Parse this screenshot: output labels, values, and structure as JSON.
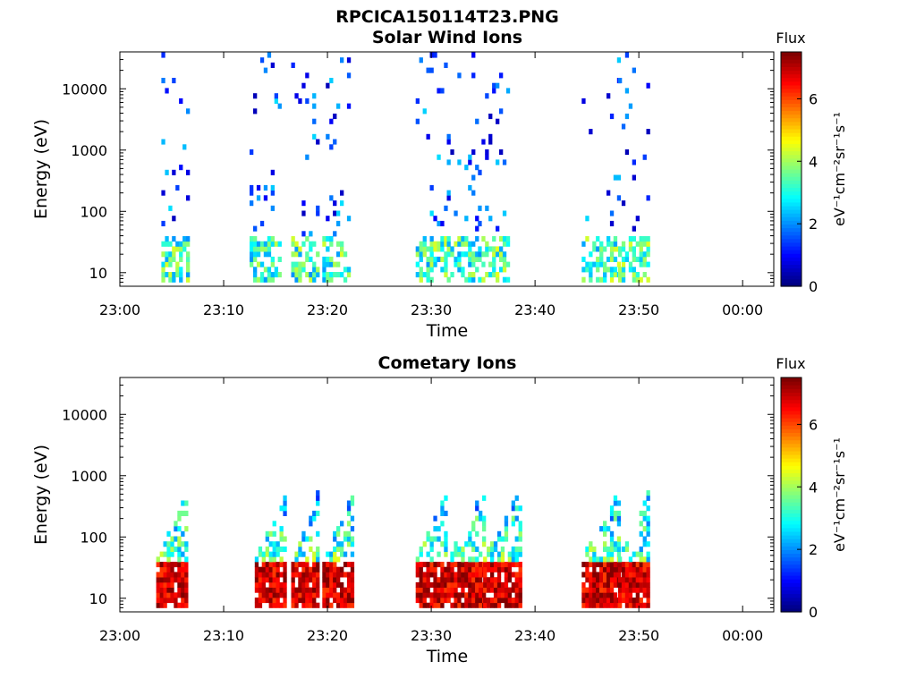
{
  "figure": {
    "title": "RPCICA150114T23.PNG"
  },
  "chart_data": [
    {
      "type": "heatmap",
      "title": "Solar Wind Ions",
      "xlabel": "Time",
      "ylabel": "Energy (eV)",
      "x_ticks": [
        "23:00",
        "23:10",
        "23:20",
        "23:30",
        "23:40",
        "23:50",
        "00:00"
      ],
      "xlim_minutes": [
        0,
        63
      ],
      "y_scale": "log",
      "ylim": [
        6,
        40000
      ],
      "y_ticks": [
        10,
        100,
        1000,
        10000
      ],
      "y_tick_labels": [
        "10",
        "100",
        "1000",
        "10000"
      ],
      "colorbar": {
        "label": "Flux",
        "units": "eV⁻¹cm⁻²sr⁻¹s⁻¹",
        "range": [
          0,
          7.5
        ],
        "ticks": [
          "0",
          "2",
          "4",
          "6"
        ],
        "colormap": "jet"
      },
      "bursts": [
        {
          "t_start": 4.0,
          "t_end": 6.5
        },
        {
          "t_start": 12.5,
          "t_end": 15.5
        },
        {
          "t_start": 16.5,
          "t_end": 19.0
        },
        {
          "t_start": 19.5,
          "t_end": 22.0
        },
        {
          "t_start": 28.5,
          "t_end": 31.5
        },
        {
          "t_start": 31.5,
          "t_end": 34.5
        },
        {
          "t_start": 34.5,
          "t_end": 37.5
        },
        {
          "t_start": 44.5,
          "t_end": 48.0
        },
        {
          "t_start": 48.0,
          "t_end": 51.0
        }
      ],
      "energy_range_eV": [
        7,
        35000
      ],
      "peak_flux": 4.5
    },
    {
      "type": "heatmap",
      "title": "Cometary Ions",
      "xlabel": "Time",
      "ylabel": "Energy (eV)",
      "x_ticks": [
        "23:00",
        "23:10",
        "23:20",
        "23:30",
        "23:40",
        "23:50",
        "00:00"
      ],
      "xlim_minutes": [
        0,
        63
      ],
      "y_scale": "log",
      "ylim": [
        6,
        40000
      ],
      "y_ticks": [
        10,
        100,
        1000,
        10000
      ],
      "y_tick_labels": [
        "10",
        "100",
        "1000",
        "10000"
      ],
      "colorbar": {
        "label": "Flux",
        "units": "eV⁻¹cm⁻²sr⁻¹s⁻¹",
        "range": [
          0,
          7.5
        ],
        "ticks": [
          "0",
          "2",
          "4",
          "6"
        ],
        "colormap": "jet"
      },
      "bursts": [
        {
          "t_start": 3.5,
          "t_end": 6.5
        },
        {
          "t_start": 13.0,
          "t_end": 16.0
        },
        {
          "t_start": 16.5,
          "t_end": 19.0
        },
        {
          "t_start": 19.5,
          "t_end": 22.5
        },
        {
          "t_start": 28.5,
          "t_end": 31.5
        },
        {
          "t_start": 31.5,
          "t_end": 35.0
        },
        {
          "t_start": 35.0,
          "t_end": 38.5
        },
        {
          "t_start": 44.5,
          "t_end": 48.0
        },
        {
          "t_start": 48.0,
          "t_end": 51.0
        }
      ],
      "energy_range_eV": [
        7,
        550
      ],
      "peak_flux": 7.3
    }
  ]
}
